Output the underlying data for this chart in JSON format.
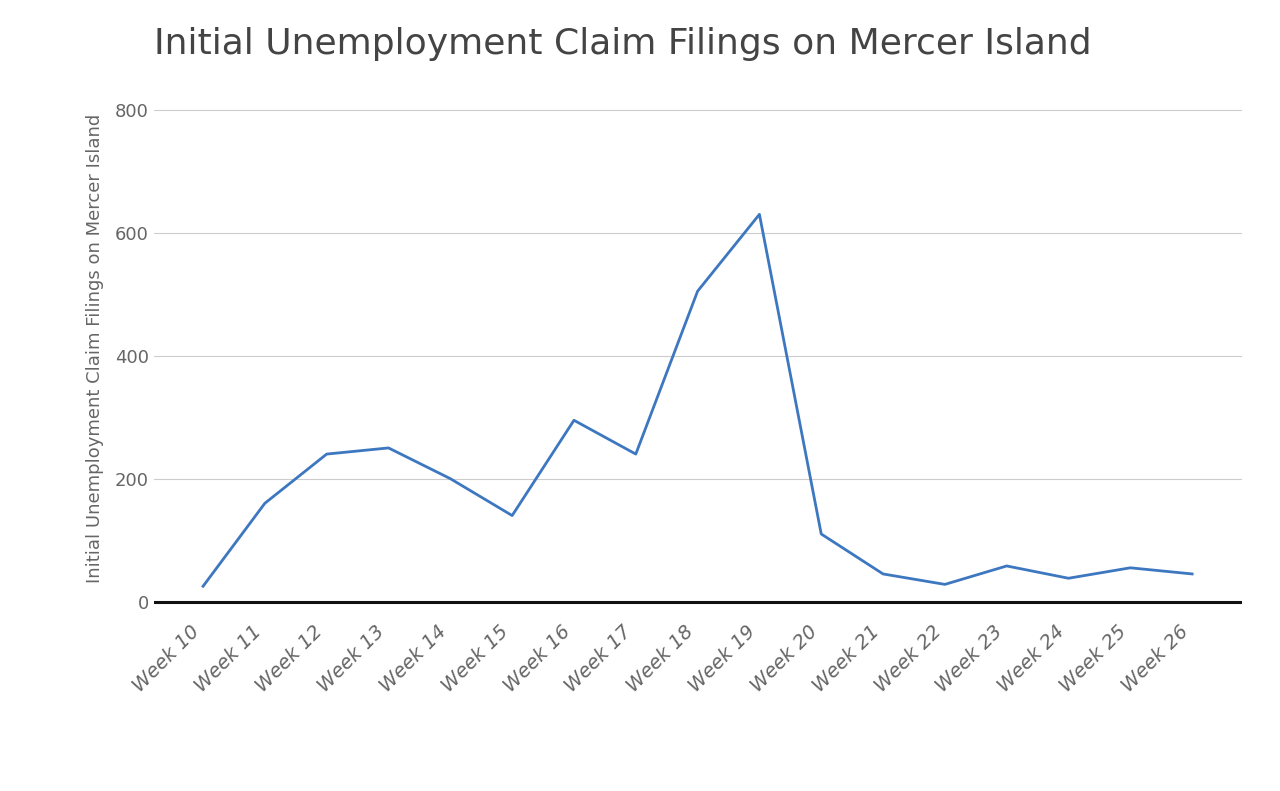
{
  "title": "Initial Unemployment Claim Filings on Mercer Island",
  "ylabel": "Initial Unemployment Claim Filings on Mercer Island",
  "categories": [
    "Week 10",
    "Week 11",
    "Week 12",
    "Week 13",
    "Week 14",
    "Week 15",
    "Week 16",
    "Week 17",
    "Week 18",
    "Week 19",
    "Week 20",
    "Week 21",
    "Week 22",
    "Week 23",
    "Week 24",
    "Week 25",
    "Week 26"
  ],
  "values": [
    25,
    160,
    240,
    250,
    200,
    140,
    295,
    240,
    505,
    630,
    110,
    45,
    28,
    58,
    38,
    55,
    45
  ],
  "line_color": "#3d77c0",
  "line_width": 2.0,
  "background_color": "#ffffff",
  "yticks": [
    0,
    200,
    400,
    600,
    800
  ],
  "ylim": [
    -25,
    850
  ],
  "title_fontsize": 26,
  "ylabel_fontsize": 13,
  "tick_fontsize": 13,
  "xtick_fontsize": 14,
  "grid_color": "#cccccc",
  "title_color": "#444444",
  "tick_color": "#666666"
}
